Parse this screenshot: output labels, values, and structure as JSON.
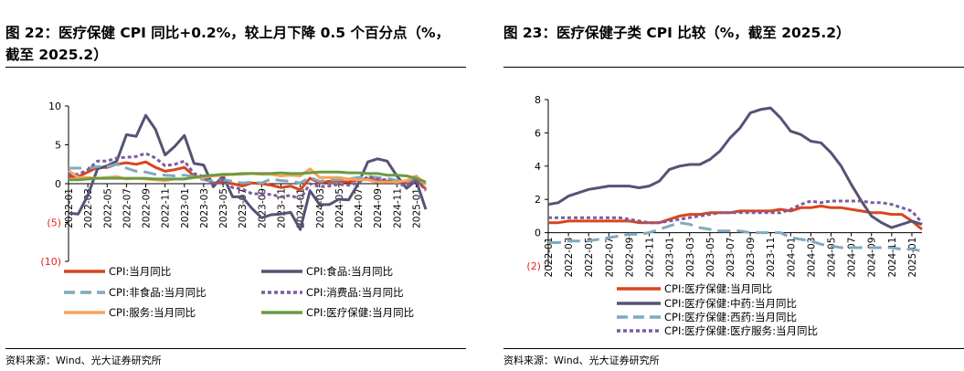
{
  "left": {
    "title": "图 22：医疗保健 CPI 同比+0.2%，较上月下降 0.5 个百分点（%，截至 2025.2）",
    "source": "资料来源：Wind、光大证券研究所"
  },
  "right": {
    "title": "图 23：医疗保健子类 CPI 比较（%，截至 2025.2）",
    "source": "资料来源：Wind、光大证券研究所"
  },
  "chart_data": [
    {
      "type": "line",
      "ylim": [
        -10,
        10
      ],
      "yticks": [
        10,
        5,
        0,
        -5,
        -10
      ],
      "ytick_labels": [
        "10",
        "5",
        "0",
        "(5)",
        "(10)"
      ],
      "x_tick_labels": [
        "2022-01",
        "2022-03",
        "2022-05",
        "2022-07",
        "2022-09",
        "2022-11",
        "2023-01",
        "2023-03",
        "2023-05",
        "2023-07",
        "2023-09",
        "2023-11",
        "2024-01",
        "2024-03",
        "2024-05",
        "2024-07",
        "2024-09",
        "2024-11",
        "2025-01"
      ],
      "x_range": [
        "2022-01",
        "2025-02"
      ],
      "legend_position": "bottom",
      "series": [
        {
          "name": "CPI:当月同比",
          "color": "#d9451f",
          "dash": "solid",
          "values": [
            0.9,
            0.9,
            1.5,
            2.1,
            2.1,
            2.5,
            2.7,
            2.5,
            2.8,
            2.1,
            1.6,
            1.8,
            2.1,
            1.0,
            0.7,
            0.1,
            0.2,
            0.0,
            -0.3,
            0.1,
            0.0,
            -0.2,
            -0.5,
            -0.3,
            -0.8,
            0.7,
            0.1,
            0.3,
            0.3,
            0.2,
            0.5,
            0.6,
            0.4,
            0.3,
            0.2,
            0.1,
            0.5,
            -0.7
          ]
        },
        {
          "name": "CPI:食品:当月同比",
          "color": "#555374",
          "dash": "solid",
          "values": [
            -3.8,
            -3.9,
            -1.5,
            1.9,
            2.3,
            2.9,
            6.3,
            6.1,
            8.8,
            7.0,
            3.7,
            4.8,
            6.2,
            2.6,
            2.4,
            -0.4,
            1.0,
            -1.7,
            -1.7,
            -3.2,
            -4.4,
            -4.0,
            -3.9,
            -3.7,
            -5.9,
            -0.9,
            -2.7,
            -2.7,
            -2.0,
            -2.1,
            0.0,
            2.8,
            3.2,
            2.9,
            1.0,
            -0.6,
            0.4,
            -3.3
          ]
        },
        {
          "name": "CPI:非食品:当月同比",
          "color": "#7fa9c0",
          "dash": "dash",
          "values": [
            2.0,
            2.0,
            2.0,
            2.2,
            2.2,
            2.5,
            2.0,
            1.6,
            1.5,
            1.2,
            1.1,
            1.0,
            1.1,
            0.9,
            0.5,
            0.3,
            0.5,
            0.3,
            0.1,
            0.2,
            0.1,
            0.6,
            0.4,
            0.3,
            0.1,
            0.8,
            0.3,
            0.5,
            0.5,
            0.6,
            0.8,
            0.9,
            0.8,
            0.7,
            0.4,
            0.2,
            0.8,
            -0.1
          ]
        },
        {
          "name": "CPI:消费品:当月同比",
          "color": "#7b5d9f",
          "dash": "dot",
          "values": [
            1.2,
            1.2,
            1.8,
            2.9,
            2.9,
            3.3,
            3.4,
            3.5,
            3.9,
            3.3,
            2.3,
            2.5,
            2.9,
            1.3,
            0.9,
            -0.2,
            0.5,
            -0.5,
            -0.7,
            -1.3,
            -1.3,
            -1.4,
            -1.7,
            -1.5,
            -2.0,
            0.0,
            -0.4,
            -0.3,
            -0.1,
            -0.2,
            0.1,
            0.9,
            0.6,
            0.5,
            0.0,
            -0.3,
            0.6,
            -0.9
          ]
        },
        {
          "name": "CPI:服务:当月同比",
          "color": "#f5a45a",
          "dash": "solid",
          "values": [
            1.7,
            0.8,
            0.8,
            0.7,
            0.8,
            0.9,
            0.6,
            0.7,
            0.6,
            0.5,
            0.4,
            0.6,
            0.6,
            0.8,
            0.8,
            1.0,
            1.1,
            1.2,
            1.2,
            1.3,
            1.2,
            1.2,
            1.0,
            1.1,
            1.0,
            1.9,
            0.8,
            0.8,
            0.8,
            0.6,
            0.5,
            0.5,
            0.2,
            0.2,
            0.2,
            0.4,
            1.0,
            -0.1
          ]
        },
        {
          "name": "CPI:医疗保健:当月同比",
          "color": "#6a9a42",
          "dash": "solid",
          "values": [
            0.5,
            0.5,
            0.6,
            0.7,
            0.7,
            0.7,
            0.7,
            0.7,
            0.7,
            0.6,
            0.6,
            0.6,
            0.6,
            0.8,
            1.0,
            1.1,
            1.2,
            1.2,
            1.3,
            1.3,
            1.3,
            1.3,
            1.4,
            1.3,
            1.3,
            1.4,
            1.5,
            1.5,
            1.5,
            1.4,
            1.4,
            1.3,
            1.3,
            1.1,
            1.1,
            1.0,
            0.7,
            0.2
          ]
        }
      ]
    },
    {
      "type": "line",
      "ylim": [
        -2,
        8
      ],
      "yticks": [
        8,
        6,
        4,
        2,
        0,
        -2
      ],
      "ytick_labels": [
        "8",
        "6",
        "4",
        "2",
        "0",
        "(2)"
      ],
      "x_tick_labels": [
        "2022-01",
        "2022-03",
        "2022-05",
        "2022-07",
        "2022-09",
        "2022-11",
        "2023-01",
        "2023-03",
        "2023-05",
        "2023-07",
        "2023-09",
        "2023-11",
        "2024-01",
        "2024-03",
        "2024-05",
        "2024-07",
        "2024-09",
        "2024-11",
        "2025-01"
      ],
      "x_range": [
        "2022-01",
        "2025-02"
      ],
      "legend_position": "bottom",
      "series": [
        {
          "name": "CPI:医疗保健:当月同比",
          "color": "#d9451f",
          "dash": "solid",
          "values": [
            0.6,
            0.6,
            0.7,
            0.7,
            0.7,
            0.7,
            0.7,
            0.7,
            0.7,
            0.6,
            0.6,
            0.6,
            0.8,
            1.0,
            1.1,
            1.1,
            1.2,
            1.2,
            1.2,
            1.3,
            1.3,
            1.3,
            1.3,
            1.4,
            1.3,
            1.5,
            1.5,
            1.6,
            1.5,
            1.5,
            1.4,
            1.3,
            1.2,
            1.2,
            1.1,
            1.1,
            0.7,
            0.2
          ]
        },
        {
          "name": "CPI:医疗保健:中药:当月同比",
          "color": "#555374",
          "dash": "solid",
          "values": [
            1.7,
            1.8,
            2.2,
            2.4,
            2.6,
            2.7,
            2.8,
            2.8,
            2.8,
            2.7,
            2.8,
            3.1,
            3.8,
            4.0,
            4.1,
            4.1,
            4.4,
            4.9,
            5.7,
            6.3,
            7.2,
            7.4,
            7.5,
            6.9,
            6.1,
            5.9,
            5.5,
            5.4,
            4.8,
            4.0,
            2.9,
            1.9,
            1.0,
            0.6,
            0.3,
            0.5,
            0.7,
            0.5
          ]
        },
        {
          "name": "CPI:医疗保健:西药:当月同比",
          "color": "#7fa9c0",
          "dash": "dash",
          "values": [
            -0.6,
            -0.6,
            -0.5,
            -0.5,
            -0.5,
            -0.4,
            -0.3,
            -0.2,
            -0.1,
            -0.1,
            0.0,
            0.2,
            0.4,
            0.6,
            0.5,
            0.3,
            0.2,
            0.1,
            0.1,
            0.1,
            0.0,
            0.0,
            0.0,
            0.0,
            -0.3,
            -0.4,
            -0.5,
            -0.7,
            -0.8,
            -0.9,
            -0.9,
            -0.9,
            -0.9,
            -0.9,
            -0.9,
            -1.0,
            -1.0,
            -1.1
          ]
        },
        {
          "name": "CPI:医疗保健:医疗服务:当月同比",
          "color": "#7b5d9f",
          "dash": "dot",
          "values": [
            0.9,
            0.9,
            0.9,
            0.9,
            0.9,
            0.9,
            0.9,
            0.9,
            0.8,
            0.7,
            0.6,
            0.6,
            0.7,
            0.8,
            0.9,
            1.0,
            1.1,
            1.2,
            1.2,
            1.2,
            1.2,
            1.2,
            1.2,
            1.2,
            1.4,
            1.7,
            1.9,
            1.8,
            1.9,
            1.9,
            1.9,
            1.9,
            1.8,
            1.8,
            1.7,
            1.5,
            1.3,
            0.6
          ]
        }
      ]
    }
  ]
}
